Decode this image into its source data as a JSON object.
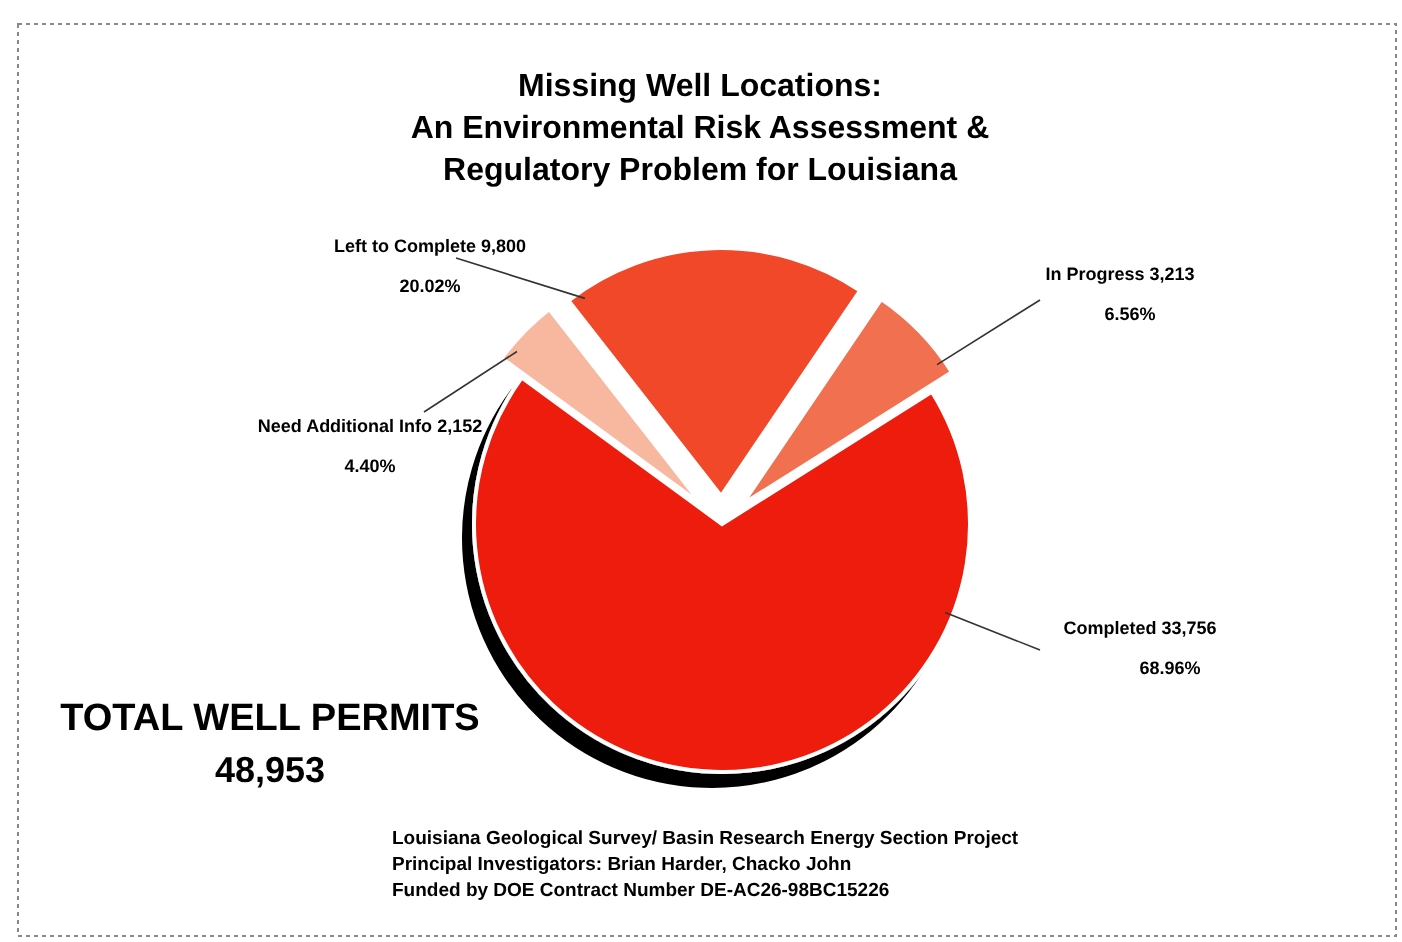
{
  "chart_data": {
    "type": "pie",
    "title": "Missing Well Locations:\nAn Environmental Risk Assessment &\nRegulatory Problem for Louisiana",
    "categories": [
      "Left to Complete",
      "In Progress",
      "Completed",
      "Need Additional Info"
    ],
    "values": [
      9800,
      3213,
      33756,
      2152
    ],
    "value_labels": [
      "9,800\n20.02%",
      "3,213\n6.56%",
      "33,756\n68.96%",
      "2,152\n4.40%"
    ],
    "colors": [
      "#f04828",
      "#f07050",
      "#ee1a0a",
      "#f8b8a0"
    ],
    "annotations": [
      "TOTAL WELL PERMITS\n48,953",
      "Louisiana Geological Survey/ Basin Research Energy Section Project\nPrincipal Investigators: Brian Harder, Chacko John\nFunded by DOE Contract Number DE-AC26-98BC15226"
    ]
  }
}
